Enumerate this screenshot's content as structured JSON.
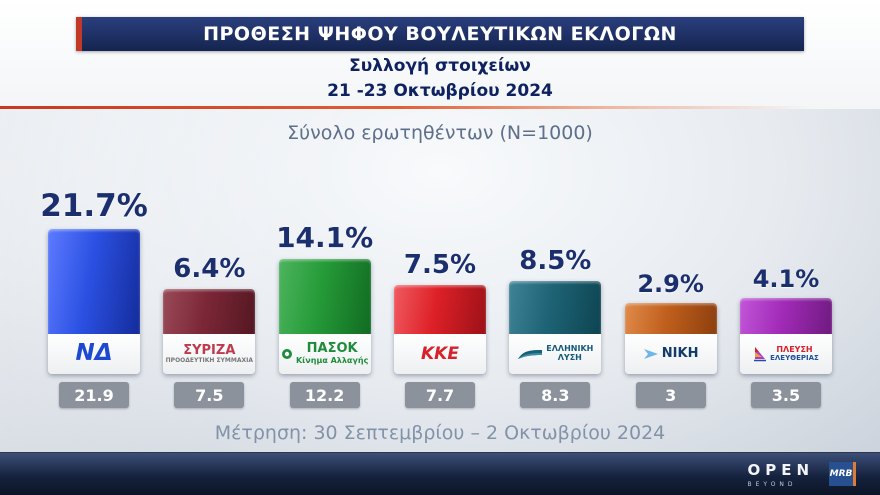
{
  "header": {
    "title": "ΠΡΟΘΕΣΗ ΨΗΦΟΥ ΒΟΥΛΕΥΤΙΚΩΝ ΕΚΛΟΓΩΝ"
  },
  "subheader": {
    "line1": "Συλλογή στοιχείων",
    "line2": "21 -23 Οκτωβρίου 2024"
  },
  "sample_note": "Σύνολο ερωτηθέντων (N=1000)",
  "measurement_note": "Μέτρηση: 30 Σεπτεμβρίου – 2 Οκτωβρίου 2024",
  "footer": {
    "open_logo": "OPEN",
    "open_sub": "BEYOND",
    "mrb_logo": "MRB"
  },
  "colors": {
    "header_bg": "#15244f",
    "accent_red": "#c8381f",
    "percent_text": "#1b2f6e",
    "prev_box_bg": "#8b929c"
  },
  "chart_data": {
    "type": "bar",
    "title": "ΠΡΟΘΕΣΗ ΨΗΦΟΥ ΒΟΥΛΕΥΤΙΚΩΝ ΕΚΛΟΓΩΝ",
    "subtitle": "Συλλογή στοιχείων 21 -23 Οκτωβρίου 2024",
    "sample": "N=1000",
    "unit": "%",
    "legend_position": "none",
    "grid": false,
    "categories": [
      "ΝΔ",
      "ΣΥΡΙΖΑ",
      "ΠΑΣΟΚ",
      "ΚΚΕ",
      "ΕΛΛΗΝΙΚΗ ΛΥΣΗ",
      "ΝΙΚΗ",
      "ΠΛΕΥΣΗ ΕΛΕΥΘΕΡΙΑΣ"
    ],
    "series": [
      {
        "name": "Πρόθεση ψήφου 21-23 Οκτωβρίου 2024",
        "values": [
          21.7,
          6.4,
          14.1,
          7.5,
          8.5,
          2.9,
          4.1
        ]
      },
      {
        "name": "Μέτρηση 30 Σεπτεμβρίου – 2 Οκτωβρίου 2024",
        "values": [
          21.9,
          7.5,
          12.2,
          7.7,
          8.3,
          3,
          3.5
        ]
      }
    ],
    "parties": [
      {
        "id": "nd",
        "name": "ΝΔ",
        "label": "21.7%",
        "value": 21.7,
        "previous": "21.9",
        "colors": {
          "light": "#5d7bff",
          "base": "#2b50e2",
          "dark": "#142c9a"
        },
        "logo": {
          "icon": null,
          "lines": [
            {
              "text": "ΝΔ",
              "color": "#1d49d0",
              "size": 23,
              "italic": true
            }
          ]
        }
      },
      {
        "id": "syriza",
        "name": "ΣΥΡΙΖΑ",
        "label": "6.4%",
        "value": 6.4,
        "previous": "7.5",
        "colors": {
          "light": "#9a4a58",
          "base": "#7c2737",
          "dark": "#541722"
        },
        "logo": {
          "icon": null,
          "lines": [
            {
              "text": "ΣΥΡΙΖΑ",
              "color": "#bf3a4e",
              "size": 13,
              "italic": false
            },
            {
              "text": "ΠΡΟΟΔΕΥΤΙΚΗ ΣΥΜΜΑΧΙΑ",
              "color": "#777777",
              "size": 6,
              "italic": false
            }
          ]
        }
      },
      {
        "id": "pasok",
        "name": "ΠΑΣΟΚ",
        "label": "14.1%",
        "value": 14.1,
        "previous": "12.2",
        "colors": {
          "light": "#4db45e",
          "base": "#259a38",
          "dark": "#116b22"
        },
        "logo": {
          "icon": "pasok-sun",
          "lines": [
            {
              "text": "ΠΑΣΟΚ",
              "color": "#1e8c3a",
              "size": 13,
              "italic": false
            },
            {
              "text": "Κίνημα Αλλαγής",
              "color": "#1e8c3a",
              "size": 8,
              "italic": false
            }
          ]
        }
      },
      {
        "id": "kke",
        "name": "ΚΚΕ",
        "label": "7.5%",
        "value": 7.5,
        "previous": "7.7",
        "colors": {
          "light": "#f05a60",
          "base": "#dd2027",
          "dark": "#9c1118"
        },
        "logo": {
          "icon": null,
          "lines": [
            {
              "text": "ΚΚΕ",
              "color": "#d6212b",
              "size": 17,
              "italic": true
            }
          ]
        }
      },
      {
        "id": "elliniki-lysi",
        "name": "ΕΛΛΗΝΙΚΗ ΛΥΣΗ",
        "label": "8.5%",
        "value": 8.5,
        "previous": "8.3",
        "colors": {
          "light": "#3f8496",
          "base": "#1d6375",
          "dark": "#0e4451"
        },
        "logo": {
          "icon": "lysi-flag",
          "lines": [
            {
              "text": "ΕΛΛΗΝΙΚΗ",
              "color": "#14597a",
              "size": 8,
              "italic": false
            },
            {
              "text": "ΛΥΣΗ",
              "color": "#14597a",
              "size": 8,
              "italic": false
            }
          ]
        }
      },
      {
        "id": "niki",
        "name": "ΝΙΚΗ",
        "label": "2.9%",
        "value": 2.9,
        "previous": "3",
        "colors": {
          "light": "#e08b4a",
          "base": "#c05f1d",
          "dark": "#8c3f0e"
        },
        "logo": {
          "icon": "niki-arrow",
          "lines": [
            {
              "text": "ΝΙΚΗ",
              "color": "#123a6b",
              "size": 13,
              "italic": false
            }
          ]
        }
      },
      {
        "id": "plefsi-eleftherias",
        "name": "ΠΛΕΥΣΗ ΕΛΕΥΘΕΡΙΑΣ",
        "label": "4.1%",
        "value": 4.1,
        "previous": "3.5",
        "colors": {
          "light": "#c156d8",
          "base": "#a22bb8",
          "dark": "#6f1a80"
        },
        "logo": {
          "icon": "plefsi-sail",
          "lines": [
            {
              "text": "ΠΛΕΥΣΗ",
              "color": "#d6212b",
              "size": 8,
              "italic": false
            },
            {
              "text": "ΕΛΕΥΘΕΡΙΑΣ",
              "color": "#1d4f9c",
              "size": 7,
              "italic": false
            }
          ]
        }
      }
    ]
  }
}
